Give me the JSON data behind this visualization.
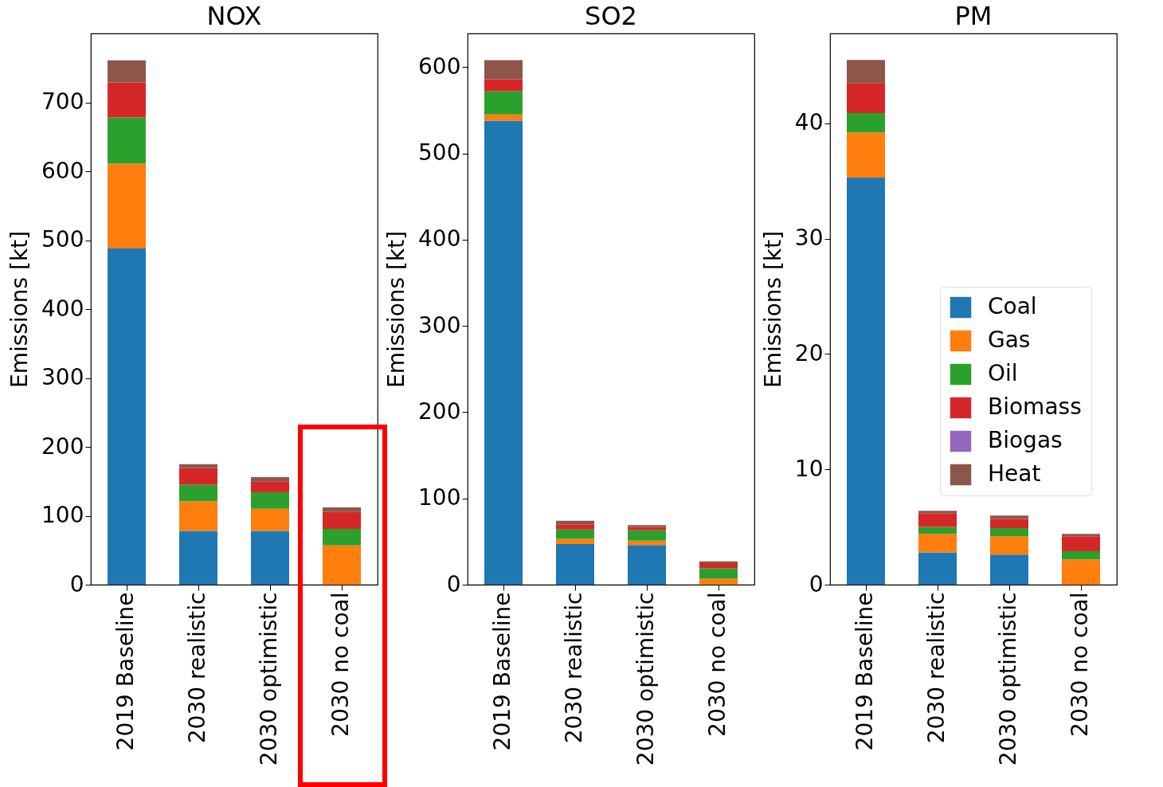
{
  "chart_data": [
    {
      "type": "bar",
      "title": "NOX",
      "ylabel": "Emissions [kt]",
      "categories": [
        "2019 Baseline",
        "2030 realistic",
        "2030 optimistic",
        "2030 no coal"
      ],
      "stacked": true,
      "ylim": [
        0,
        800
      ],
      "yticks": [
        0,
        100,
        200,
        300,
        400,
        500,
        600,
        700
      ],
      "legend": false,
      "series": [
        {
          "color": "#1f77b4",
          "values": [
            488,
            78,
            78,
            0
          ]
        },
        {
          "color": "#ff7f0e",
          "values": [
            123,
            43,
            32,
            57
          ]
        },
        {
          "color": "#2ca02c",
          "values": [
            67,
            24,
            24,
            24
          ]
        },
        {
          "color": "#d62728",
          "values": [
            51,
            24,
            16,
            25
          ]
        },
        {
          "color": "#9467bd",
          "values": [
            0,
            0,
            0,
            0
          ]
        },
        {
          "color": "#8c564b",
          "values": [
            32,
            6,
            6,
            6
          ]
        }
      ]
    },
    {
      "type": "bar",
      "title": "SO2",
      "ylabel": "Emissions [kt]",
      "categories": [
        "2019 Baseline",
        "2030 realistic",
        "2030 optimistic",
        "2030 no coal"
      ],
      "stacked": true,
      "ylim": [
        0,
        639
      ],
      "yticks": [
        0,
        100,
        200,
        300,
        400,
        500,
        600
      ],
      "legend": false,
      "series": [
        {
          "color": "#1f77b4",
          "values": [
            538,
            47,
            46,
            0
          ]
        },
        {
          "color": "#ff7f0e",
          "values": [
            7,
            6,
            5,
            7
          ]
        },
        {
          "color": "#2ca02c",
          "values": [
            27,
            11,
            12,
            12
          ]
        },
        {
          "color": "#d62728",
          "values": [
            14,
            6,
            4,
            6
          ]
        },
        {
          "color": "#9467bd",
          "values": [
            0,
            0,
            0,
            0
          ]
        },
        {
          "color": "#8c564b",
          "values": [
            22,
            4,
            2,
            2
          ]
        }
      ]
    },
    {
      "type": "bar",
      "title": "PM",
      "ylabel": "Emissions [kt]",
      "categories": [
        "2019 Baseline",
        "2030 realistic",
        "2030 optimistic",
        "2030 no coal"
      ],
      "stacked": true,
      "ylim": [
        0,
        47.8
      ],
      "yticks": [
        0,
        10,
        20,
        30,
        40
      ],
      "legend": "right",
      "series": [
        {
          "name": "Coal",
          "color": "#1f77b4",
          "values": [
            35.3,
            2.8,
            2.6,
            0
          ]
        },
        {
          "name": "Gas",
          "color": "#ff7f0e",
          "values": [
            3.9,
            1.6,
            1.6,
            2.2
          ]
        },
        {
          "name": "Oil",
          "color": "#2ca02c",
          "values": [
            1.7,
            0.6,
            0.7,
            0.7
          ]
        },
        {
          "name": "Biomass",
          "color": "#d62728",
          "values": [
            2.6,
            1.2,
            0.8,
            1.3
          ]
        },
        {
          "name": "Biogas",
          "color": "#9467bd",
          "values": [
            0,
            0,
            0,
            0
          ]
        },
        {
          "name": "Heat",
          "color": "#8c564b",
          "values": [
            2.0,
            0.2,
            0.3,
            0.2
          ]
        }
      ]
    }
  ]
}
